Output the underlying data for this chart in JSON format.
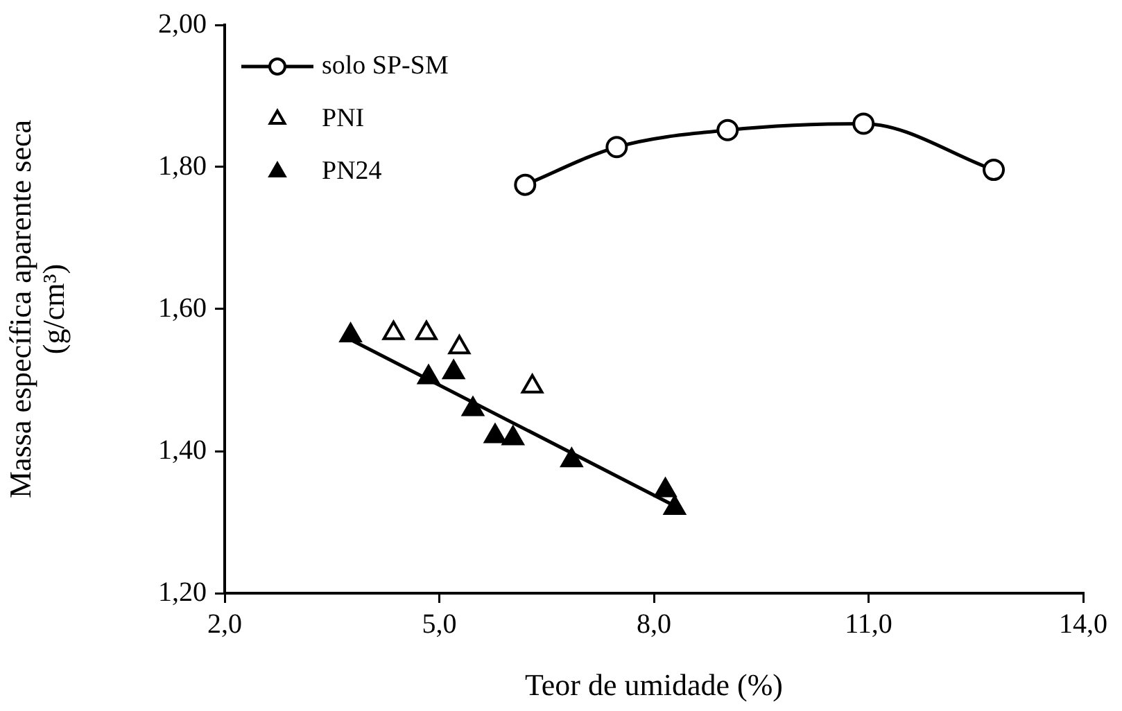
{
  "chart_data": {
    "type": "scatter",
    "xlabel": "Teor de umidade (%)",
    "ylabel": "Massa específica aparente seca\n(g/cm³)",
    "xlim": [
      2,
      14
    ],
    "xticks": [
      {
        "value": 2,
        "label": "2,0"
      },
      {
        "value": 5,
        "label": "5,0"
      },
      {
        "value": 8,
        "label": "8,0"
      },
      {
        "value": 11,
        "label": "11,0"
      },
      {
        "value": 14,
        "label": "14,0"
      }
    ],
    "ylim": [
      1.2,
      2
    ],
    "yticks": [
      {
        "value": 1.2,
        "label": "1,20"
      },
      {
        "value": 1.4,
        "label": "1,40"
      },
      {
        "value": 1.6,
        "label": "1,60"
      },
      {
        "value": 1.8,
        "label": "1,80"
      },
      {
        "value": 2,
        "label": "2,00"
      }
    ],
    "grid": false,
    "legend": "top left",
    "series": [
      {
        "name": "solo SP-SM",
        "type": "line",
        "color": "#000000",
        "marker": "circle",
        "x": [
          6.2,
          7.48,
          9.03,
          10.93,
          12.75
        ],
        "values": [
          1.775,
          1.828,
          1.852,
          1.861,
          1.796
        ]
      },
      {
        "name": "PNI",
        "type": "scatter",
        "color": "#ffffff",
        "marker": "triangle",
        "x": [
          4.36,
          4.82,
          5.28,
          6.3
        ],
        "values": [
          1.566,
          1.566,
          1.546,
          1.491
        ]
      },
      {
        "name": "PN24",
        "type": "scatter",
        "color": "#000000",
        "marker": "triangle",
        "x": [
          3.76,
          4.85,
          5.2,
          5.47,
          5.78,
          6.03,
          6.85,
          8.16,
          8.29
        ],
        "values": [
          1.563,
          1.504,
          1.511,
          1.459,
          1.421,
          1.418,
          1.387,
          1.345,
          1.32
        ]
      },
      {
        "type": "line",
        "color": "#000000",
        "marker": "none",
        "x": [
          3.76,
          8.29
        ],
        "values": [
          1.557,
          1.323
        ]
      }
    ]
  }
}
